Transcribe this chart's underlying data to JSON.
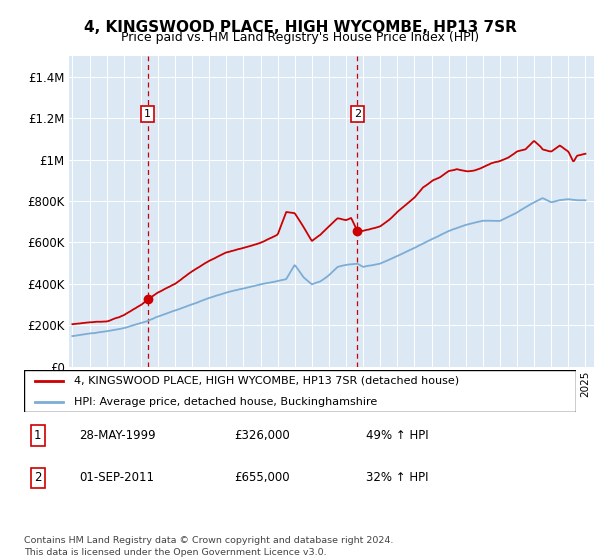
{
  "title": "4, KINGSWOOD PLACE, HIGH WYCOMBE, HP13 7SR",
  "subtitle": "Price paid vs. HM Land Registry's House Price Index (HPI)",
  "hpi_label": "HPI: Average price, detached house, Buckinghamshire",
  "property_label": "4, KINGSWOOD PLACE, HIGH WYCOMBE, HP13 7SR (detached house)",
  "property_color": "#cc0000",
  "hpi_color": "#7dadd4",
  "background_color": "#dce9f5",
  "annotation1": {
    "label": "1",
    "date_x": 1999.4,
    "price": 326000,
    "text_date": "28-MAY-1999",
    "text_price": "£326,000",
    "text_pct": "49% ↑ HPI"
  },
  "annotation2": {
    "label": "2",
    "date_x": 2011.67,
    "price": 655000,
    "text_date": "01-SEP-2011",
    "text_price": "£655,000",
    "text_pct": "32% ↑ HPI"
  },
  "footer": "Contains HM Land Registry data © Crown copyright and database right 2024.\nThis data is licensed under the Open Government Licence v3.0.",
  "ylim": [
    0,
    1500000
  ],
  "xlim": [
    1994.8,
    2025.5
  ],
  "yticks": [
    0,
    200000,
    400000,
    600000,
    800000,
    1000000,
    1200000,
    1400000
  ],
  "ytick_labels": [
    "£0",
    "£200K",
    "£400K",
    "£600K",
    "£800K",
    "£1M",
    "£1.2M",
    "£1.4M"
  ],
  "hpi_anchors": [
    [
      1995.0,
      148000
    ],
    [
      1996.0,
      160000
    ],
    [
      1997.0,
      170000
    ],
    [
      1998.0,
      185000
    ],
    [
      1999.4,
      218800
    ],
    [
      2000.0,
      240000
    ],
    [
      2001.0,
      270000
    ],
    [
      2002.0,
      300000
    ],
    [
      2003.0,
      330000
    ],
    [
      2004.0,
      355000
    ],
    [
      2005.0,
      375000
    ],
    [
      2006.0,
      395000
    ],
    [
      2007.0,
      410000
    ],
    [
      2007.5,
      420000
    ],
    [
      2008.0,
      490000
    ],
    [
      2008.5,
      430000
    ],
    [
      2009.0,
      395000
    ],
    [
      2009.5,
      410000
    ],
    [
      2010.0,
      440000
    ],
    [
      2010.5,
      480000
    ],
    [
      2011.0,
      490000
    ],
    [
      2011.67,
      496000
    ],
    [
      2012.0,
      480000
    ],
    [
      2013.0,
      495000
    ],
    [
      2014.0,
      530000
    ],
    [
      2015.0,
      570000
    ],
    [
      2016.0,
      610000
    ],
    [
      2017.0,
      650000
    ],
    [
      2018.0,
      680000
    ],
    [
      2019.0,
      700000
    ],
    [
      2020.0,
      700000
    ],
    [
      2020.5,
      720000
    ],
    [
      2021.0,
      740000
    ],
    [
      2022.0,
      790000
    ],
    [
      2022.5,
      810000
    ],
    [
      2023.0,
      790000
    ],
    [
      2023.5,
      800000
    ],
    [
      2024.0,
      805000
    ],
    [
      2024.5,
      800000
    ],
    [
      2025.0,
      800000
    ]
  ],
  "prop_anchors": [
    [
      1995.0,
      205000
    ],
    [
      1996.0,
      215000
    ],
    [
      1997.0,
      220000
    ],
    [
      1998.0,
      250000
    ],
    [
      1999.0,
      300000
    ],
    [
      1999.4,
      326000
    ],
    [
      2000.0,
      360000
    ],
    [
      2001.0,
      400000
    ],
    [
      2002.0,
      460000
    ],
    [
      2003.0,
      510000
    ],
    [
      2004.0,
      555000
    ],
    [
      2005.0,
      575000
    ],
    [
      2006.0,
      600000
    ],
    [
      2007.0,
      640000
    ],
    [
      2007.5,
      750000
    ],
    [
      2008.0,
      745000
    ],
    [
      2008.5,
      680000
    ],
    [
      2009.0,
      610000
    ],
    [
      2009.5,
      640000
    ],
    [
      2010.0,
      680000
    ],
    [
      2010.5,
      720000
    ],
    [
      2011.0,
      710000
    ],
    [
      2011.3,
      720000
    ],
    [
      2011.67,
      655000
    ],
    [
      2012.0,
      660000
    ],
    [
      2012.5,
      670000
    ],
    [
      2013.0,
      680000
    ],
    [
      2013.5,
      710000
    ],
    [
      2014.0,
      750000
    ],
    [
      2015.0,
      820000
    ],
    [
      2015.5,
      870000
    ],
    [
      2016.0,
      900000
    ],
    [
      2016.5,
      920000
    ],
    [
      2017.0,
      950000
    ],
    [
      2017.5,
      960000
    ],
    [
      2018.0,
      950000
    ],
    [
      2018.5,
      955000
    ],
    [
      2019.0,
      970000
    ],
    [
      2019.5,
      990000
    ],
    [
      2020.0,
      1000000
    ],
    [
      2020.5,
      1020000
    ],
    [
      2021.0,
      1050000
    ],
    [
      2021.5,
      1060000
    ],
    [
      2022.0,
      1100000
    ],
    [
      2022.3,
      1080000
    ],
    [
      2022.5,
      1060000
    ],
    [
      2023.0,
      1050000
    ],
    [
      2023.5,
      1080000
    ],
    [
      2024.0,
      1050000
    ],
    [
      2024.3,
      1000000
    ],
    [
      2024.5,
      1030000
    ],
    [
      2025.0,
      1040000
    ]
  ]
}
